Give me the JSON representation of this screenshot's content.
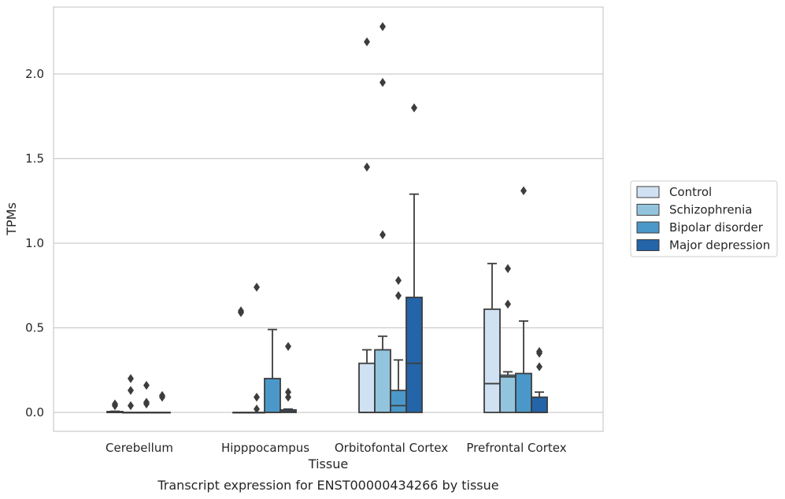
{
  "chart_data": {
    "type": "boxplot",
    "caption": "Transcript expression for ENST00000434266 by tissue",
    "xlabel": "Tissue",
    "ylabel": "TPMs",
    "ylim": [
      -0.11,
      2.4
    ],
    "yticks": [
      "0.0",
      "0.5",
      "1.0",
      "1.5",
      "2.0"
    ],
    "ytick_values": [
      0.0,
      0.5,
      1.0,
      1.5,
      2.0
    ],
    "grid": "horizontal",
    "legend_position": "right",
    "categories": [
      "Cerebellum",
      "Hipppocampus",
      "Orbitofontal Cortex",
      "Prefrontal Cortex"
    ],
    "series": [
      {
        "name": "Control",
        "color": "#cfe1f2",
        "boxes": [
          {
            "q1": 0.0,
            "median": 0.0,
            "q3": 0.005,
            "whislo": 0.0,
            "whishi": 0.007,
            "fliers": [
              0.04,
              0.05
            ]
          },
          {
            "q1": 0.0,
            "median": 0.0,
            "q3": 0.0,
            "whislo": 0.0,
            "whishi": 0.0,
            "fliers": [
              0.59,
              0.6
            ]
          },
          {
            "q1": 0.0,
            "median": 0.0,
            "q3": 0.29,
            "whislo": 0.0,
            "whishi": 0.37,
            "fliers": [
              1.45,
              2.19
            ]
          },
          {
            "q1": 0.0,
            "median": 0.17,
            "q3": 0.61,
            "whislo": 0.0,
            "whishi": 0.88,
            "fliers": []
          }
        ]
      },
      {
        "name": "Schizophrenia",
        "color": "#93c4de",
        "boxes": [
          {
            "q1": 0.0,
            "median": 0.0,
            "q3": 0.0,
            "whislo": 0.0,
            "whishi": 0.0,
            "fliers": [
              0.04,
              0.13,
              0.2
            ]
          },
          {
            "q1": 0.0,
            "median": 0.0,
            "q3": 0.0,
            "whislo": 0.0,
            "whishi": 0.0,
            "fliers": [
              0.02,
              0.09,
              0.74
            ]
          },
          {
            "q1": 0.0,
            "median": 0.0,
            "q3": 0.37,
            "whislo": 0.0,
            "whishi": 0.45,
            "fliers": [
              1.05,
              1.95,
              2.28
            ]
          },
          {
            "q1": 0.0,
            "median": 0.21,
            "q3": 0.22,
            "whislo": 0.0,
            "whishi": 0.24,
            "fliers": [
              0.64,
              0.85
            ]
          }
        ]
      },
      {
        "name": "Bipolar disorder",
        "color": "#4a98c9",
        "boxes": [
          {
            "q1": 0.0,
            "median": 0.0,
            "q3": 0.0,
            "whislo": 0.0,
            "whishi": 0.0,
            "fliers": [
              0.05,
              0.06,
              0.16
            ]
          },
          {
            "q1": 0.0,
            "median": 0.0,
            "q3": 0.2,
            "whislo": 0.0,
            "whishi": 0.49,
            "fliers": []
          },
          {
            "q1": 0.0,
            "median": 0.04,
            "q3": 0.13,
            "whislo": 0.0,
            "whishi": 0.31,
            "fliers": [
              0.69,
              0.78
            ]
          },
          {
            "q1": 0.0,
            "median": 0.0,
            "q3": 0.23,
            "whislo": 0.0,
            "whishi": 0.54,
            "fliers": [
              1.31
            ]
          }
        ]
      },
      {
        "name": "Major depression",
        "color": "#2464a8",
        "boxes": [
          {
            "q1": 0.0,
            "median": 0.0,
            "q3": 0.0,
            "whislo": 0.0,
            "whishi": 0.0,
            "fliers": [
              0.09,
              0.1
            ]
          },
          {
            "q1": 0.0,
            "median": 0.005,
            "q3": 0.015,
            "whislo": 0.0,
            "whishi": 0.02,
            "fliers": [
              0.09,
              0.12,
              0.39
            ]
          },
          {
            "q1": 0.0,
            "median": 0.29,
            "q3": 0.68,
            "whislo": 0.0,
            "whishi": 1.29,
            "fliers": [
              1.8
            ]
          },
          {
            "q1": 0.0,
            "median": 0.0,
            "q3": 0.09,
            "whislo": 0.0,
            "whishi": 0.12,
            "fliers": [
              0.27,
              0.35,
              0.36
            ]
          }
        ]
      }
    ]
  }
}
